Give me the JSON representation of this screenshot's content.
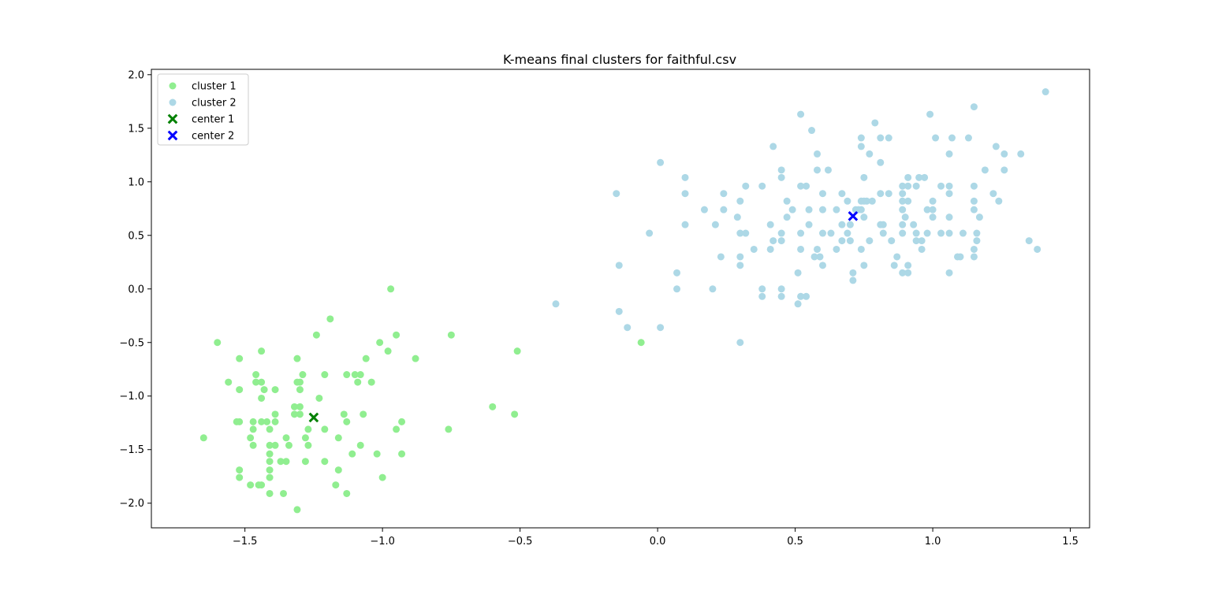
{
  "chart_data": {
    "type": "scatter",
    "title": "K-means final clusters for faithful.csv",
    "xlabel": "",
    "ylabel": "",
    "xlim": [
      -1.84,
      1.57
    ],
    "ylim": [
      -2.23,
      2.05
    ],
    "x_ticks": [
      -1.5,
      -1.0,
      -0.5,
      0.0,
      0.5,
      1.0,
      1.5
    ],
    "x_tick_labels": [
      "−1.5",
      "−1.0",
      "−0.5",
      "0.0",
      "0.5",
      "1.0",
      "1.5"
    ],
    "y_ticks": [
      -2.0,
      -1.5,
      -1.0,
      -0.5,
      0.0,
      0.5,
      1.0,
      1.5,
      2.0
    ],
    "y_tick_labels": [
      "−2.0",
      "−1.5",
      "−1.0",
      "−0.5",
      "0.0",
      "0.5",
      "1.0",
      "1.5",
      "2.0"
    ],
    "grid": false,
    "legend_position": "top-left",
    "series": [
      {
        "name": "cluster 1",
        "color": "#90ee90",
        "marker": "circle",
        "points": [
          [
            -1.65,
            -1.39
          ],
          [
            -1.6,
            -0.5
          ],
          [
            -1.56,
            -0.87
          ],
          [
            -1.53,
            -1.24
          ],
          [
            -1.52,
            -1.24
          ],
          [
            -1.52,
            -0.65
          ],
          [
            -1.52,
            -0.94
          ],
          [
            -1.52,
            -1.69
          ],
          [
            -1.52,
            -1.76
          ],
          [
            -1.48,
            -1.39
          ],
          [
            -1.48,
            -1.83
          ],
          [
            -1.47,
            -1.24
          ],
          [
            -1.47,
            -1.31
          ],
          [
            -1.47,
            -1.46
          ],
          [
            -1.46,
            -0.8
          ],
          [
            -1.46,
            -0.87
          ],
          [
            -1.45,
            -1.83
          ],
          [
            -1.44,
            -0.58
          ],
          [
            -1.44,
            -0.87
          ],
          [
            -1.44,
            -1.02
          ],
          [
            -1.44,
            -1.24
          ],
          [
            -1.44,
            -1.83
          ],
          [
            -1.43,
            -0.94
          ],
          [
            -1.42,
            -1.24
          ],
          [
            -1.41,
            -1.31
          ],
          [
            -1.41,
            -1.46
          ],
          [
            -1.41,
            -1.54
          ],
          [
            -1.41,
            -1.61
          ],
          [
            -1.41,
            -1.69
          ],
          [
            -1.41,
            -1.76
          ],
          [
            -1.41,
            -1.91
          ],
          [
            -1.39,
            -0.94
          ],
          [
            -1.39,
            -1.17
          ],
          [
            -1.39,
            -1.24
          ],
          [
            -1.39,
            -1.46
          ],
          [
            -1.37,
            -1.61
          ],
          [
            -1.36,
            -1.91
          ],
          [
            -1.35,
            -1.39
          ],
          [
            -1.35,
            -1.61
          ],
          [
            -1.34,
            -1.46
          ],
          [
            -1.32,
            -1.1
          ],
          [
            -1.32,
            -1.17
          ],
          [
            -1.31,
            -0.65
          ],
          [
            -1.31,
            -0.87
          ],
          [
            -1.31,
            -2.06
          ],
          [
            -1.3,
            -0.87
          ],
          [
            -1.3,
            -0.94
          ],
          [
            -1.3,
            -1.1
          ],
          [
            -1.3,
            -1.17
          ],
          [
            -1.29,
            -0.8
          ],
          [
            -1.28,
            -1.39
          ],
          [
            -1.28,
            -1.61
          ],
          [
            -1.27,
            -1.31
          ],
          [
            -1.27,
            -1.46
          ],
          [
            -1.24,
            -0.43
          ],
          [
            -1.23,
            -1.02
          ],
          [
            -1.21,
            -0.8
          ],
          [
            -1.21,
            -1.31
          ],
          [
            -1.21,
            -1.61
          ],
          [
            -1.19,
            -0.28
          ],
          [
            -1.17,
            -1.83
          ],
          [
            -1.16,
            -1.39
          ],
          [
            -1.16,
            -1.69
          ],
          [
            -1.14,
            -1.17
          ],
          [
            -1.13,
            -0.8
          ],
          [
            -1.13,
            -1.24
          ],
          [
            -1.13,
            -1.91
          ],
          [
            -1.11,
            -1.54
          ],
          [
            -1.1,
            -0.8
          ],
          [
            -1.09,
            -0.87
          ],
          [
            -1.08,
            -0.8
          ],
          [
            -1.08,
            -1.46
          ],
          [
            -1.07,
            -1.17
          ],
          [
            -1.06,
            -0.65
          ],
          [
            -1.04,
            -0.87
          ],
          [
            -1.02,
            -1.54
          ],
          [
            -1.01,
            -0.5
          ],
          [
            -1.0,
            -1.76
          ],
          [
            -0.98,
            -0.58
          ],
          [
            -0.97,
            0.0
          ],
          [
            -0.95,
            -0.43
          ],
          [
            -0.95,
            -1.31
          ],
          [
            -0.93,
            -1.24
          ],
          [
            -0.93,
            -1.54
          ],
          [
            -0.88,
            -0.65
          ],
          [
            -0.76,
            -1.31
          ],
          [
            -0.75,
            -0.43
          ],
          [
            -0.6,
            -1.1
          ],
          [
            -0.52,
            -1.17
          ],
          [
            -0.51,
            -0.58
          ],
          [
            -0.06,
            -0.5
          ]
        ]
      },
      {
        "name": "cluster 2",
        "color": "#add8e6",
        "marker": "circle",
        "points": [
          [
            -0.37,
            -0.14
          ],
          [
            -0.15,
            0.89
          ],
          [
            -0.14,
            0.22
          ],
          [
            -0.14,
            -0.21
          ],
          [
            -0.11,
            -0.36
          ],
          [
            -0.03,
            0.52
          ],
          [
            0.01,
            1.18
          ],
          [
            0.01,
            -0.36
          ],
          [
            0.07,
            0.15
          ],
          [
            0.07,
            0.0
          ],
          [
            0.1,
            1.04
          ],
          [
            0.1,
            0.89
          ],
          [
            0.1,
            0.6
          ],
          [
            0.17,
            0.74
          ],
          [
            0.2,
            0.0
          ],
          [
            0.21,
            0.6
          ],
          [
            0.23,
            0.3
          ],
          [
            0.24,
            0.89
          ],
          [
            0.24,
            0.74
          ],
          [
            0.29,
            0.67
          ],
          [
            0.3,
            0.82
          ],
          [
            0.3,
            0.52
          ],
          [
            0.3,
            0.3
          ],
          [
            0.3,
            0.22
          ],
          [
            0.3,
            -0.5
          ],
          [
            0.32,
            0.96
          ],
          [
            0.32,
            0.52
          ],
          [
            0.35,
            0.37
          ],
          [
            0.38,
            0.96
          ],
          [
            0.38,
            0.0
          ],
          [
            0.38,
            -0.07
          ],
          [
            0.41,
            0.6
          ],
          [
            0.41,
            0.37
          ],
          [
            0.42,
            1.33
          ],
          [
            0.42,
            0.45
          ],
          [
            0.45,
            1.11
          ],
          [
            0.45,
            1.04
          ],
          [
            0.45,
            0.52
          ],
          [
            0.45,
            0.45
          ],
          [
            0.45,
            0.0
          ],
          [
            0.45,
            -0.07
          ],
          [
            0.47,
            0.82
          ],
          [
            0.47,
            0.67
          ],
          [
            0.49,
            0.74
          ],
          [
            0.51,
            0.15
          ],
          [
            0.51,
            -0.14
          ],
          [
            0.52,
            1.63
          ],
          [
            0.52,
            0.96
          ],
          [
            0.52,
            0.52
          ],
          [
            0.52,
            0.37
          ],
          [
            0.52,
            -0.07
          ],
          [
            0.54,
            0.96
          ],
          [
            0.54,
            -0.07
          ],
          [
            0.55,
            0.74
          ],
          [
            0.55,
            0.6
          ],
          [
            0.56,
            1.48
          ],
          [
            0.57,
            0.3
          ],
          [
            0.58,
            1.26
          ],
          [
            0.58,
            1.11
          ],
          [
            0.58,
            0.37
          ],
          [
            0.59,
            0.3
          ],
          [
            0.6,
            0.89
          ],
          [
            0.6,
            0.74
          ],
          [
            0.6,
            0.52
          ],
          [
            0.6,
            0.22
          ],
          [
            0.62,
            1.11
          ],
          [
            0.63,
            0.52
          ],
          [
            0.65,
            0.74
          ],
          [
            0.65,
            0.37
          ],
          [
            0.67,
            0.89
          ],
          [
            0.67,
            0.6
          ],
          [
            0.67,
            0.45
          ],
          [
            0.69,
            0.82
          ],
          [
            0.69,
            0.52
          ],
          [
            0.7,
            0.6
          ],
          [
            0.7,
            0.45
          ],
          [
            0.71,
            0.15
          ],
          [
            0.71,
            0.08
          ],
          [
            0.72,
            0.74
          ],
          [
            0.73,
            0.74
          ],
          [
            0.74,
            1.41
          ],
          [
            0.74,
            1.33
          ],
          [
            0.74,
            0.82
          ],
          [
            0.74,
            0.74
          ],
          [
            0.74,
            0.37
          ],
          [
            0.75,
            1.04
          ],
          [
            0.75,
            0.82
          ],
          [
            0.75,
            0.67
          ],
          [
            0.75,
            0.22
          ],
          [
            0.76,
            0.82
          ],
          [
            0.77,
            1.26
          ],
          [
            0.77,
            0.45
          ],
          [
            0.78,
            0.82
          ],
          [
            0.79,
            1.55
          ],
          [
            0.81,
            1.41
          ],
          [
            0.81,
            1.18
          ],
          [
            0.81,
            0.89
          ],
          [
            0.81,
            0.6
          ],
          [
            0.82,
            0.6
          ],
          [
            0.82,
            0.52
          ],
          [
            0.84,
            1.41
          ],
          [
            0.84,
            0.89
          ],
          [
            0.85,
            0.45
          ],
          [
            0.86,
            0.22
          ],
          [
            0.87,
            0.3
          ],
          [
            0.89,
            0.96
          ],
          [
            0.89,
            0.89
          ],
          [
            0.89,
            0.82
          ],
          [
            0.89,
            0.74
          ],
          [
            0.89,
            0.6
          ],
          [
            0.89,
            0.52
          ],
          [
            0.89,
            0.15
          ],
          [
            0.9,
            0.67
          ],
          [
            0.91,
            1.04
          ],
          [
            0.91,
            0.96
          ],
          [
            0.91,
            0.82
          ],
          [
            0.91,
            0.22
          ],
          [
            0.91,
            0.15
          ],
          [
            0.93,
            0.6
          ],
          [
            0.94,
            0.96
          ],
          [
            0.94,
            0.52
          ],
          [
            0.94,
            0.45
          ],
          [
            0.95,
            1.04
          ],
          [
            0.96,
            0.45
          ],
          [
            0.96,
            0.37
          ],
          [
            0.97,
            1.04
          ],
          [
            0.98,
            0.74
          ],
          [
            0.98,
            0.52
          ],
          [
            0.99,
            1.63
          ],
          [
            1.0,
            0.82
          ],
          [
            1.0,
            0.74
          ],
          [
            1.0,
            0.67
          ],
          [
            1.01,
            1.41
          ],
          [
            1.03,
            0.96
          ],
          [
            1.03,
            0.52
          ],
          [
            1.06,
            1.26
          ],
          [
            1.06,
            0.96
          ],
          [
            1.06,
            0.89
          ],
          [
            1.06,
            0.67
          ],
          [
            1.06,
            0.52
          ],
          [
            1.06,
            0.15
          ],
          [
            1.07,
            1.41
          ],
          [
            1.09,
            0.3
          ],
          [
            1.1,
            0.3
          ],
          [
            1.11,
            0.52
          ],
          [
            1.13,
            1.41
          ],
          [
            1.15,
            1.7
          ],
          [
            1.15,
            0.96
          ],
          [
            1.15,
            0.82
          ],
          [
            1.15,
            0.74
          ],
          [
            1.15,
            0.37
          ],
          [
            1.15,
            0.3
          ],
          [
            1.16,
            0.52
          ],
          [
            1.16,
            0.45
          ],
          [
            1.17,
            0.67
          ],
          [
            1.19,
            1.11
          ],
          [
            1.22,
            0.89
          ],
          [
            1.23,
            1.33
          ],
          [
            1.24,
            0.82
          ],
          [
            1.26,
            1.26
          ],
          [
            1.26,
            1.11
          ],
          [
            1.32,
            1.26
          ],
          [
            1.35,
            0.45
          ],
          [
            1.38,
            0.37
          ],
          [
            1.41,
            1.84
          ]
        ]
      },
      {
        "name": "center 1",
        "color": "#008000",
        "marker": "x",
        "points": [
          [
            -1.25,
            -1.2
          ]
        ]
      },
      {
        "name": "center 2",
        "color": "#0000ff",
        "marker": "x",
        "points": [
          [
            0.71,
            0.68
          ]
        ]
      }
    ]
  }
}
